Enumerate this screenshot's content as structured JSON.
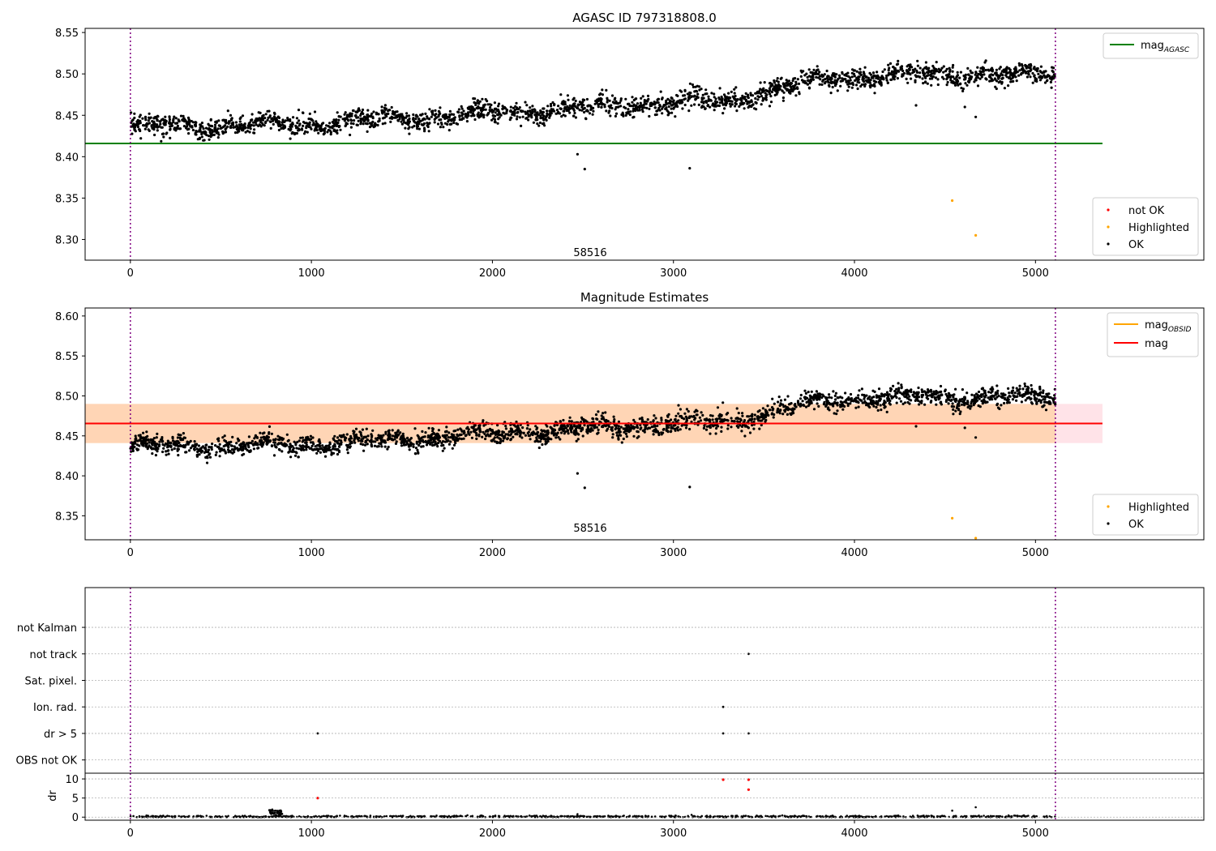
{
  "chart_data": [
    {
      "type": "scatter",
      "title": "AGASC ID 797318808.0",
      "xlim": [
        -250,
        5930
      ],
      "ylim": [
        8.275,
        8.555
      ],
      "x_ticks": [
        0,
        1000,
        2000,
        3000,
        4000,
        5000
      ],
      "y_ticks": [
        8.3,
        8.35,
        8.4,
        8.45,
        8.5,
        8.55
      ],
      "grid": false,
      "annotation": {
        "text": "58516",
        "x": 2540,
        "y": 8.28
      },
      "vlines": [
        0,
        5110
      ],
      "hlines": [
        {
          "name": "mag",
          "subscript": "AGASC",
          "y": 8.416,
          "x_range": [
            -250,
            5370
          ],
          "color": "#008000"
        }
      ],
      "line_legend": {
        "position": "top-right",
        "entries": [
          {
            "label": "mag",
            "subscript": "AGASC",
            "color": "#008000"
          }
        ]
      },
      "point_legend": {
        "position": "bottom-right",
        "entries": [
          {
            "label": "not OK",
            "color": "#ff0000"
          },
          {
            "label": "Highlighted",
            "color": "#ffa500"
          },
          {
            "label": "OK",
            "color": "#000000"
          }
        ]
      },
      "series": [
        {
          "name": "OK",
          "color": "#000000",
          "trend": {
            "x": [
              0,
              500,
              1000,
              1500,
              2000,
              2500,
              2900,
              3300,
              3700,
              4000,
              4500,
              5110
            ],
            "y": [
              8.437,
              8.437,
              8.44,
              8.445,
              8.452,
              8.459,
              8.464,
              8.468,
              8.488,
              8.497,
              8.499,
              8.498
            ]
          },
          "scatter_sd": 0.0058,
          "n_points": 2500
        },
        {
          "name": "OK outliers",
          "color": "#000000",
          "points": [
            [
              2470,
              8.403
            ],
            [
              2510,
              8.385
            ],
            [
              3090,
              8.386
            ],
            [
              4340,
              8.462
            ],
            [
              4610,
              8.46
            ],
            [
              4670,
              8.448
            ]
          ]
        },
        {
          "name": "Highlighted",
          "color": "#ffa500",
          "points": [
            [
              4540,
              8.347
            ],
            [
              4670,
              8.305
            ]
          ]
        }
      ]
    },
    {
      "type": "scatter",
      "title": "Magnitude Estimates",
      "xlim": [
        -250,
        5930
      ],
      "ylim": [
        8.32,
        8.61
      ],
      "x_ticks": [
        0,
        1000,
        2000,
        3000,
        4000,
        5000
      ],
      "y_ticks": [
        8.35,
        8.4,
        8.45,
        8.5,
        8.55,
        8.6
      ],
      "grid": false,
      "annotation": {
        "text": "58516",
        "x": 2540,
        "y": 8.33
      },
      "vlines": [
        0,
        5110
      ],
      "bands": [
        {
          "y_range": [
            8.441,
            8.49
          ],
          "x_range": [
            -250,
            5370
          ],
          "color": "#ffc0cb",
          "opacity": 0.45
        },
        {
          "y_range": [
            8.441,
            8.49
          ],
          "x_range": [
            -250,
            5110
          ],
          "color": "#ffa500",
          "opacity": 0.22
        }
      ],
      "hlines": [
        {
          "name": "mag",
          "y": 8.4655,
          "x_range": [
            -250,
            5370
          ],
          "color": "#ff0000"
        }
      ],
      "line_legend": {
        "position": "top-right",
        "entries": [
          {
            "label": "mag",
            "subscript": "OBSID",
            "color": "#ffa500"
          },
          {
            "label": "mag",
            "color": "#ff0000"
          }
        ]
      },
      "point_legend": {
        "position": "bottom-right",
        "entries": [
          {
            "label": "Highlighted",
            "color": "#ffa500"
          },
          {
            "label": "OK",
            "color": "#000000"
          }
        ]
      },
      "series": [
        {
          "name": "OK",
          "color": "#000000",
          "trend": {
            "x": [
              0,
              500,
              1000,
              1500,
              2000,
              2500,
              2900,
              3300,
              3700,
              4000,
              4500,
              5110
            ],
            "y": [
              8.437,
              8.437,
              8.44,
              8.445,
              8.452,
              8.459,
              8.464,
              8.468,
              8.488,
              8.497,
              8.499,
              8.498
            ]
          },
          "scatter_sd": 0.0058,
          "n_points": 2500
        },
        {
          "name": "OK outliers",
          "color": "#000000",
          "points": [
            [
              2470,
              8.403
            ],
            [
              2510,
              8.385
            ],
            [
              3090,
              8.386
            ],
            [
              4340,
              8.462
            ],
            [
              4610,
              8.46
            ],
            [
              4670,
              8.448
            ]
          ]
        },
        {
          "name": "Highlighted",
          "color": "#ffa500",
          "points": [
            [
              4540,
              8.347
            ],
            [
              4670,
              8.322
            ]
          ]
        }
      ]
    },
    {
      "type": "scatter",
      "xlim": [
        -250,
        5930
      ],
      "x_ticks": [
        0,
        1000,
        2000,
        3000,
        4000,
        5000
      ],
      "categories": [
        "OBS not OK",
        "dr > 5",
        "Ion. rad.",
        "Sat. pixel.",
        "not track",
        "not Kalman"
      ],
      "grid": true,
      "vlines": [
        0,
        5110
      ],
      "series": [
        {
          "name": "flags",
          "color": "#000000",
          "points": [
            [
              1035,
              "dr > 5"
            ],
            [
              3275,
              "dr > 5"
            ],
            [
              3415,
              "dr > 5"
            ],
            [
              3275,
              "Ion. rad."
            ],
            [
              3415,
              "not track"
            ]
          ]
        }
      ]
    },
    {
      "type": "scatter",
      "ylabel": "dr",
      "xlim": [
        -250,
        5930
      ],
      "ylim": [
        -0.8,
        11.5
      ],
      "x_ticks": [
        0,
        1000,
        2000,
        3000,
        4000,
        5000
      ],
      "y_ticks": [
        0,
        5,
        10
      ],
      "grid": true,
      "vlines": [
        0,
        5110
      ],
      "series": [
        {
          "name": "dr",
          "color": "#000000",
          "baseline": 0.15,
          "scatter_sd": 0.12,
          "n_points": 900,
          "cluster": {
            "x_range": [
              760,
              840
            ],
            "y_range": [
              0.5,
              2.0
            ],
            "n_points": 40
          },
          "points": [
            [
              2470,
              0.8
            ],
            [
              3100,
              0.6
            ],
            [
              4540,
              1.7
            ],
            [
              4670,
              2.6
            ]
          ]
        },
        {
          "name": "dr flagged",
          "color": "#ff0000",
          "points": [
            [
              1035,
              5.0
            ],
            [
              3275,
              9.8
            ],
            [
              3415,
              9.8
            ],
            [
              3415,
              7.2
            ]
          ]
        }
      ]
    }
  ]
}
